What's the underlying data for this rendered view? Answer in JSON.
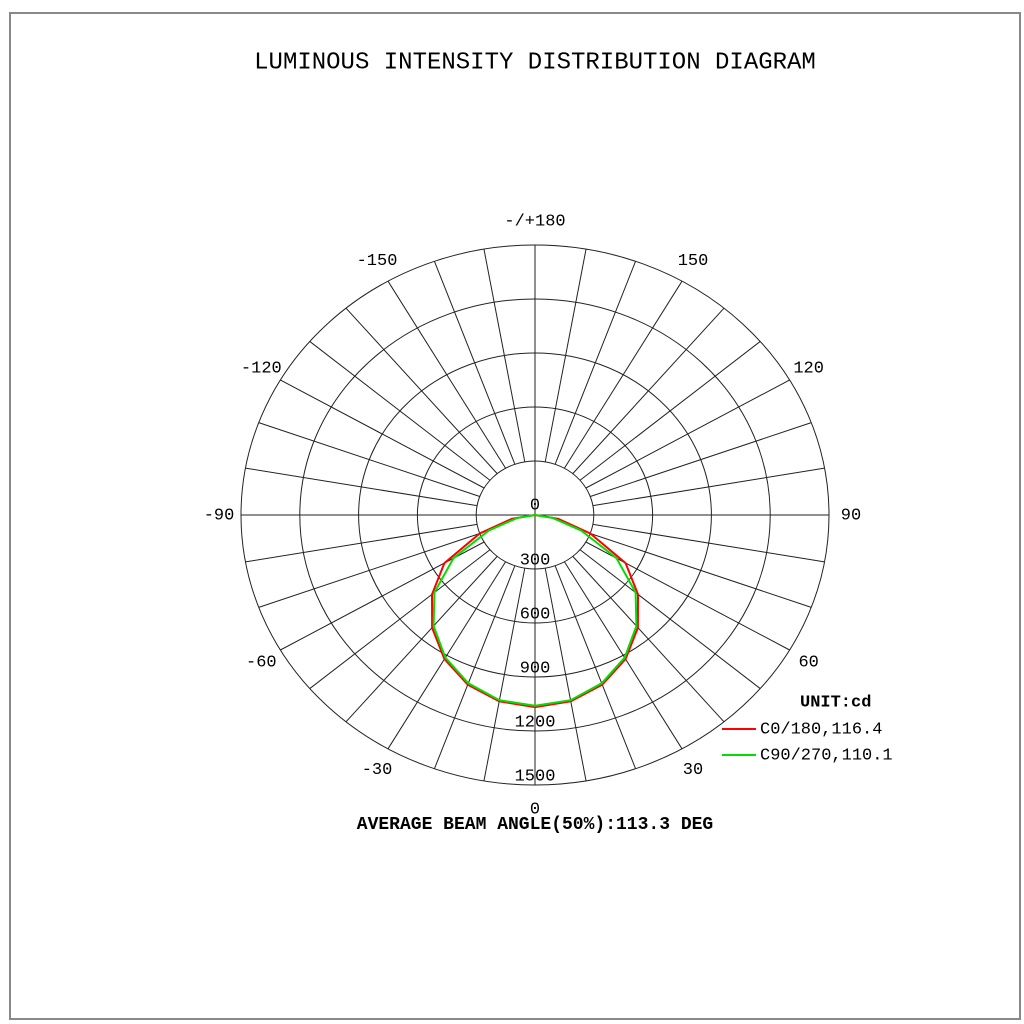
{
  "chart_data": {
    "type": "polar",
    "title": "LUMINOUS INTENSITY DISTRIBUTION DIAGRAM",
    "footer": "AVERAGE BEAM ANGLE(50%):113.3 DEG",
    "legend_title": "UNIT:cd",
    "theta": [
      -90,
      -80,
      -70,
      -60,
      -50,
      -40,
      -30,
      -20,
      -10,
      0,
      10,
      20,
      30,
      40,
      50,
      60,
      70,
      80,
      90
    ],
    "series": [
      {
        "name": "C0/180,116.4",
        "color": "#ff0000",
        "values": [
          0,
          120,
          300,
          534,
          686,
          817,
          924,
          1003,
          1051,
          1067,
          1051,
          1003,
          924,
          817,
          686,
          534,
          300,
          120,
          0
        ]
      },
      {
        "name": "C90/270,110.1",
        "color": "#00e000",
        "values": [
          0,
          90,
          250,
          480,
          670,
          805,
          915,
          995,
          1045,
          1060,
          1045,
          995,
          915,
          805,
          670,
          480,
          250,
          90,
          0
        ]
      }
    ],
    "rlim": [
      0,
      1500
    ],
    "rticks": [
      0,
      300,
      600,
      900,
      1200,
      1500
    ],
    "thetaticks": [
      {
        "value": 180,
        "label": "-/+180"
      },
      150,
      120,
      90,
      60,
      30,
      0,
      -30,
      -60,
      -90,
      -120,
      -150
    ],
    "theta_grid": [
      -170,
      -160,
      -150,
      -140,
      -130,
      -120,
      -110,
      -100,
      -90,
      -80,
      -70,
      -60,
      -50,
      -40,
      -30,
      -20,
      -10,
      0,
      10,
      20,
      30,
      40,
      50,
      60,
      70,
      80,
      90,
      100,
      110,
      120,
      130,
      140,
      150,
      160,
      170,
      180
    ],
    "grid": true
  }
}
